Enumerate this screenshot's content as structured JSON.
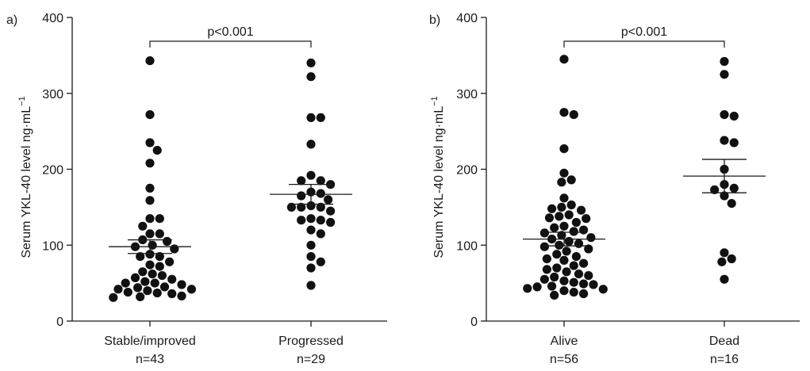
{
  "chart_data": [
    {
      "type": "scatter",
      "panel": "a)",
      "ylabel": "Serum YKL-40 level ng·mL",
      "ylabel_sup": "−1",
      "ylim": [
        0,
        400
      ],
      "yticks": [
        0,
        100,
        200,
        300,
        400
      ],
      "significance": "p<0.001",
      "groups": [
        {
          "label": "Stable/improved",
          "n_label": "n=43",
          "mean": 98,
          "sem_low": 89,
          "sem_high": 107,
          "values": [
            343,
            272,
            235,
            225,
            208,
            175,
            159,
            135,
            135,
            125,
            115,
            115,
            107,
            105,
            100,
            98,
            95,
            88,
            85,
            85,
            78,
            74,
            72,
            65,
            62,
            60,
            57,
            55,
            52,
            50,
            50,
            48,
            45,
            44,
            42,
            42,
            40,
            38,
            37,
            36,
            33,
            32,
            31
          ]
        },
        {
          "label": "Progressed",
          "n_label": "n=29",
          "mean": 167,
          "sem_low": 154,
          "sem_high": 180,
          "values": [
            340,
            322,
            268,
            268,
            233,
            192,
            185,
            185,
            180,
            170,
            168,
            165,
            160,
            152,
            150,
            150,
            150,
            145,
            135,
            133,
            133,
            130,
            120,
            115,
            100,
            85,
            78,
            70,
            47
          ]
        }
      ]
    },
    {
      "type": "scatter",
      "panel": "b)",
      "ylabel": "Serum YKL-40 level ng·mL",
      "ylabel_sup": "−1",
      "ylim": [
        0,
        400
      ],
      "yticks": [
        0,
        100,
        200,
        300,
        400
      ],
      "significance": "p<0.001",
      "groups": [
        {
          "label": "Alive",
          "n_label": "n=56",
          "mean": 108,
          "sem_low": 99,
          "sem_high": 117,
          "values": [
            345,
            275,
            272,
            227,
            195,
            186,
            183,
            162,
            153,
            150,
            148,
            146,
            140,
            138,
            136,
            135,
            130,
            125,
            123,
            120,
            118,
            116,
            113,
            110,
            108,
            105,
            102,
            100,
            98,
            95,
            92,
            88,
            85,
            82,
            80,
            76,
            73,
            70,
            68,
            65,
            62,
            60,
            58,
            55,
            53,
            51,
            49,
            48,
            46,
            45,
            43,
            42,
            40,
            38,
            36,
            34
          ]
        },
        {
          "label": "Dead",
          "n_label": "n=16",
          "mean": 191,
          "sem_low": 169,
          "sem_high": 213,
          "values": [
            342,
            325,
            272,
            270,
            238,
            235,
            200,
            180,
            175,
            173,
            165,
            155,
            90,
            82,
            78,
            55
          ]
        }
      ]
    }
  ]
}
